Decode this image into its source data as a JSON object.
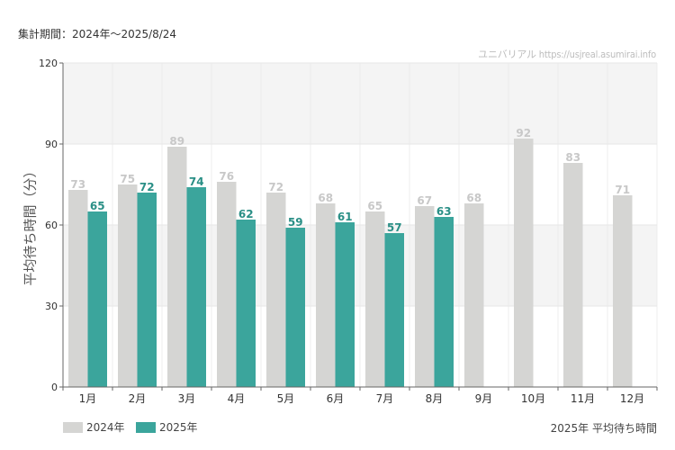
{
  "header": {
    "period_label": "集計期間：2024年～2025/8/24",
    "watermark": "ユニバリアル  https://usjreal.asumirai.info"
  },
  "footer": {
    "title": "2025年 平均待ち時間"
  },
  "colors": {
    "series_2024": "#d5d5d3",
    "series_2025": "#3ba59c",
    "label_2024": "#c8c8c8",
    "label_2025": "#2a8f86",
    "band": "#f4f4f4"
  },
  "chart_data": {
    "type": "bar",
    "title": "",
    "xlabel": "",
    "ylabel": "平均待ち時間（分）",
    "ylim": [
      0,
      120
    ],
    "yticks": [
      0,
      30,
      60,
      90,
      120
    ],
    "grid": true,
    "legend_position": "bottom-left",
    "categories": [
      "1月",
      "2月",
      "3月",
      "4月",
      "5月",
      "6月",
      "7月",
      "8月",
      "9月",
      "10月",
      "11月",
      "12月"
    ],
    "series": [
      {
        "name": "2024年",
        "values": [
          73,
          75,
          89,
          76,
          72,
          68,
          65,
          67,
          68,
          92,
          83,
          71
        ]
      },
      {
        "name": "2025年",
        "values": [
          65,
          72,
          74,
          62,
          59,
          61,
          57,
          63,
          null,
          null,
          null,
          null
        ]
      }
    ]
  }
}
